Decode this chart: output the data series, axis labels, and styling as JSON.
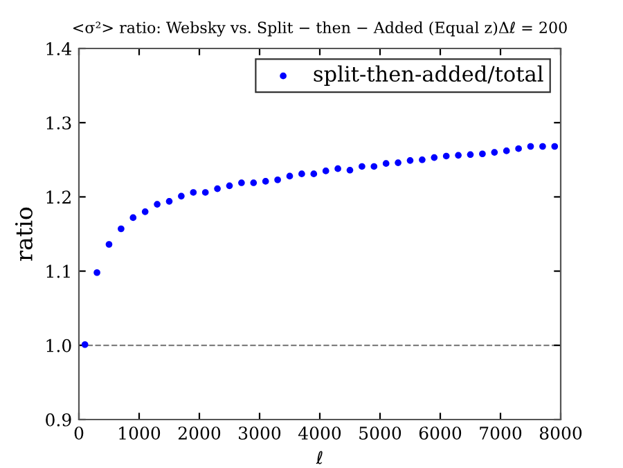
{
  "chart_data": {
    "type": "scatter",
    "title": "<σ²> ratio: Websky vs. Split − then − Added (Equal z)Δℓ = 200",
    "xlabel": "ℓ",
    "ylabel": "ratio",
    "x": [
      100,
      300,
      500,
      700,
      900,
      1100,
      1300,
      1500,
      1700,
      1900,
      2100,
      2300,
      2500,
      2700,
      2900,
      3100,
      3300,
      3500,
      3700,
      3900,
      4100,
      4300,
      4500,
      4700,
      4900,
      5100,
      5300,
      5500,
      5700,
      5900,
      6100,
      6300,
      6500,
      6700,
      6900,
      7100,
      7300,
      7500,
      7700,
      7900
    ],
    "series": [
      {
        "name": "split-then-added/total",
        "color": "#0000ff",
        "values": [
          1.001,
          1.098,
          1.136,
          1.157,
          1.172,
          1.18,
          1.19,
          1.194,
          1.201,
          1.206,
          1.206,
          1.211,
          1.215,
          1.219,
          1.219,
          1.221,
          1.223,
          1.228,
          1.231,
          1.231,
          1.235,
          1.238,
          1.236,
          1.241,
          1.241,
          1.245,
          1.246,
          1.249,
          1.25,
          1.253,
          1.255,
          1.256,
          1.257,
          1.258,
          1.26,
          1.262,
          1.265,
          1.268,
          1.268,
          1.268
        ]
      }
    ],
    "xlim": [
      0,
      8000
    ],
    "xticks": [
      0,
      1000,
      2000,
      3000,
      4000,
      5000,
      6000,
      7000,
      8000
    ],
    "ylim": [
      0.9,
      1.4
    ],
    "yticks": [
      0.9,
      {
        "value": 1.0,
        "label": "1.0"
      },
      1.1,
      1.2,
      1.3,
      1.4
    ],
    "ref_lines": [
      {
        "axis": "y",
        "value": 1.0,
        "color": "#808080",
        "line_style": "dashed"
      }
    ],
    "legend": "top right",
    "marker": "circle",
    "grid": false
  }
}
